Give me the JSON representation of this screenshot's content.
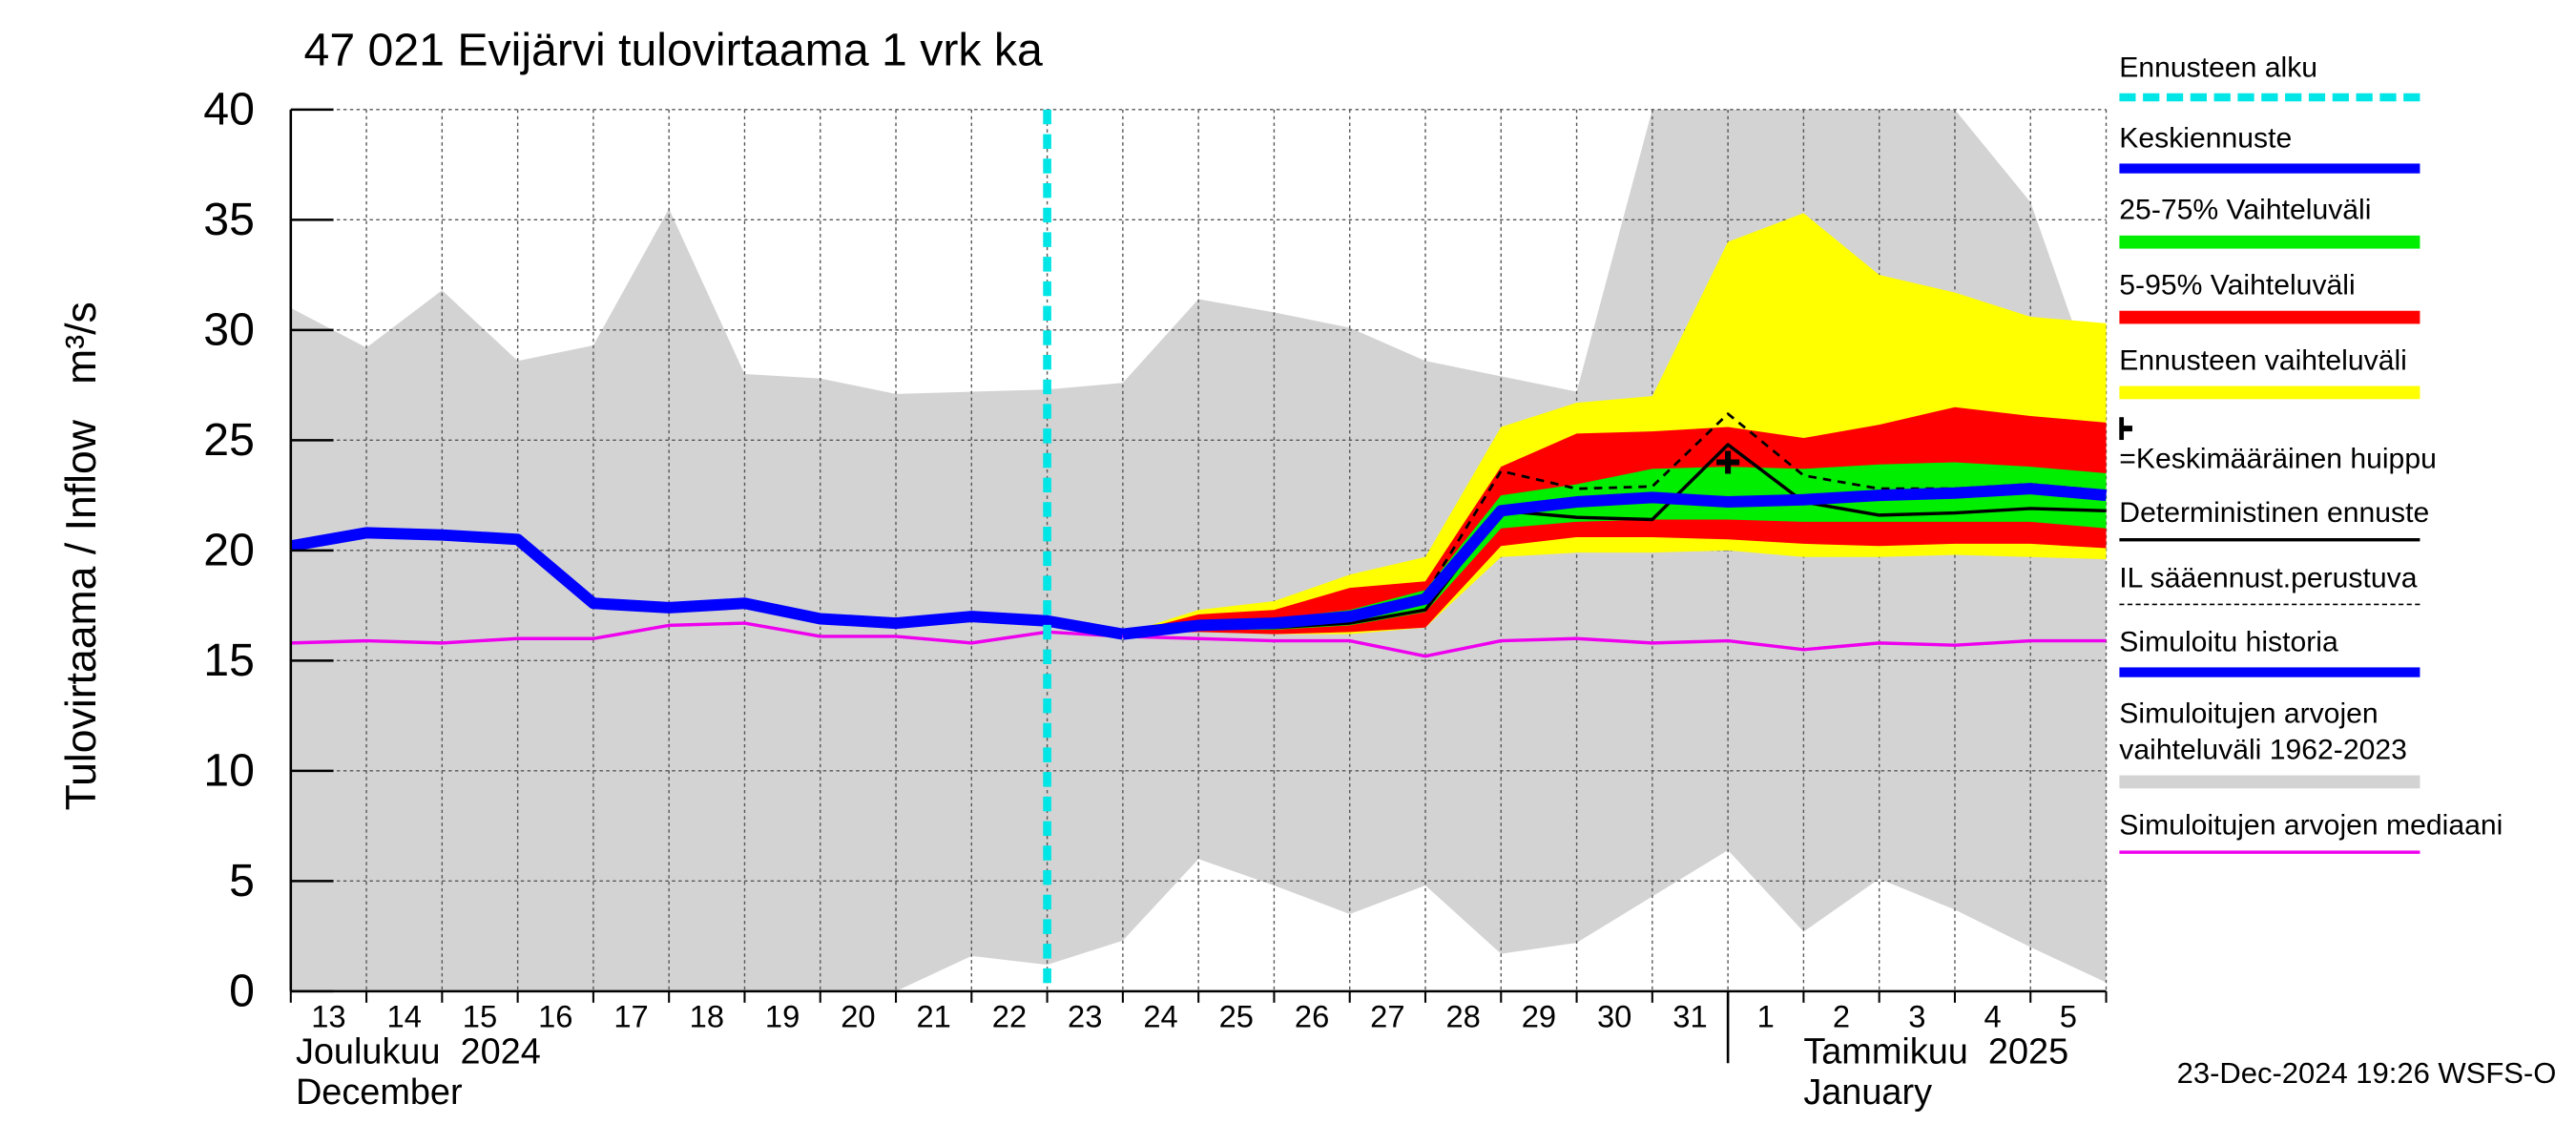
{
  "chart_data": {
    "type": "forecast-band",
    "title": "47 021 Evijärvi tulovirtaama 1 vrk ka",
    "y_label": "Tulovirtaama / Inflow   m³/s",
    "footer": "23-Dec-2024 19:26 WSFS-O",
    "month_labels": [
      [
        "Joulukuu  2024",
        "December"
      ],
      [
        "Tammikuu  2025",
        "January"
      ]
    ],
    "categories": [
      "13",
      "14",
      "15",
      "16",
      "17",
      "18",
      "19",
      "20",
      "21",
      "22",
      "23",
      "24",
      "25",
      "26",
      "27",
      "28",
      "29",
      "30",
      "31",
      "1",
      "2",
      "3",
      "4",
      "5",
      null
    ],
    "ylim": [
      0,
      40
    ],
    "yticks": [
      0,
      5,
      10,
      15,
      20,
      25,
      30,
      35,
      40
    ],
    "grid": true,
    "series": [
      {
        "name": "Ennusteen alku",
        "kind": "vline",
        "at": "23",
        "color": "#00e5e5",
        "style": "dashed"
      },
      {
        "name": "Keskiennuste",
        "kind": "line",
        "color": "#0000ff",
        "style": "thick",
        "values": [
          null,
          null,
          null,
          null,
          null,
          null,
          null,
          null,
          null,
          null,
          null,
          16.2,
          16.6,
          16.7,
          17,
          17.8,
          21.8,
          22.2,
          22.4,
          22.2,
          22.3,
          22.5,
          22.6,
          22.8,
          22.5
        ]
      },
      {
        "name": "25-75% Vaihteluväli",
        "kind": "band",
        "color": "#00ee00",
        "lower": [
          null,
          null,
          null,
          null,
          null,
          null,
          null,
          null,
          null,
          null,
          null,
          16.2,
          16.4,
          16.4,
          16.6,
          17.2,
          21,
          21.3,
          21.4,
          21.4,
          21.3,
          21.3,
          21.3,
          21.3,
          21
        ],
        "upper": [
          null,
          null,
          null,
          null,
          null,
          null,
          null,
          null,
          null,
          null,
          null,
          16.2,
          16.8,
          16.9,
          17.3,
          18.2,
          22.5,
          23,
          23.7,
          23.8,
          23.7,
          23.9,
          24,
          23.8,
          23.5
        ]
      },
      {
        "name": "5-95% Vaihteluväli",
        "kind": "band",
        "color": "#ff0000",
        "lower": [
          null,
          null,
          null,
          null,
          null,
          null,
          null,
          null,
          null,
          null,
          null,
          16.2,
          16.3,
          16.2,
          16.3,
          16.5,
          20.2,
          20.6,
          20.6,
          20.5,
          20.3,
          20.2,
          20.3,
          20.3,
          20.1
        ],
        "upper": [
          null,
          null,
          null,
          null,
          null,
          null,
          null,
          null,
          null,
          null,
          null,
          16.2,
          17.1,
          17.3,
          18.3,
          18.6,
          23.8,
          25.3,
          25.4,
          25.6,
          25.1,
          25.7,
          26.5,
          26.1,
          25.8
        ]
      },
      {
        "name": "Ennusteen vaihteluväli",
        "kind": "band",
        "color": "#ffff00",
        "lower": [
          null,
          null,
          null,
          null,
          null,
          null,
          null,
          null,
          null,
          null,
          null,
          16.2,
          16.4,
          16.2,
          16.2,
          16.5,
          19.7,
          19.9,
          19.9,
          20,
          19.7,
          19.7,
          19.8,
          19.7,
          19.6
        ],
        "upper": [
          null,
          null,
          null,
          null,
          null,
          null,
          null,
          null,
          null,
          null,
          null,
          16.2,
          17.3,
          17.7,
          18.9,
          19.7,
          25.6,
          26.7,
          27,
          34,
          35.3,
          32.5,
          31.7,
          30.6,
          30.3
        ]
      },
      {
        "name": "=Keskimääräinen huippu",
        "kind": "marker",
        "color": "#000000",
        "at": "1",
        "value": 24
      },
      {
        "name": "Deterministinen ennuste",
        "kind": "line",
        "color": "#000000",
        "style": "thin",
        "values": [
          null,
          null,
          null,
          null,
          null,
          null,
          null,
          null,
          null,
          null,
          null,
          16.2,
          16.5,
          16.5,
          16.7,
          17.3,
          21.8,
          21.5,
          21.4,
          24.8,
          22.2,
          21.6,
          21.7,
          21.9,
          21.8
        ]
      },
      {
        "name": "IL sääennust.perustuva",
        "kind": "line",
        "color": "#000000",
        "style": "dashed",
        "values": [
          null,
          null,
          null,
          null,
          null,
          null,
          null,
          null,
          null,
          null,
          null,
          16.2,
          16.6,
          16.6,
          17,
          18,
          23.6,
          22.8,
          22.9,
          26.2,
          23.4,
          22.8,
          22.8,
          23,
          22.7
        ]
      },
      {
        "name": "Simuloitu historia",
        "kind": "line",
        "color": "#0000ff",
        "style": "thick",
        "values": [
          20.2,
          20.8,
          20.7,
          20.5,
          17.6,
          17.4,
          17.6,
          16.9,
          16.7,
          17,
          16.8,
          16.2,
          null,
          null,
          null,
          null,
          null,
          null,
          null,
          null,
          null,
          null,
          null,
          null,
          null
        ]
      },
      {
        "name": "Simuloitujen arvojen vaihteluväli 1962-2023",
        "kind": "band",
        "color": "#d3d3d3",
        "lower": [
          0,
          0,
          0,
          0,
          0,
          0,
          0,
          0,
          0,
          1.6,
          1.2,
          2.3,
          6,
          4.8,
          3.5,
          4.8,
          1.7,
          2.2,
          4.3,
          6.4,
          2.7,
          5.1,
          3.7,
          2,
          0.4
        ],
        "upper": [
          31,
          29.2,
          31.8,
          28.6,
          29.3,
          35.5,
          28,
          27.8,
          27.1,
          27.2,
          27.3,
          27.6,
          31.4,
          30.8,
          30.1,
          28.6,
          27.9,
          27.2,
          40,
          40,
          40,
          40,
          40,
          35.8,
          26
        ]
      },
      {
        "name": "Simuloitujen arvojen mediaani",
        "kind": "line",
        "color": "#ee00ee",
        "style": "thin",
        "values": [
          15.8,
          15.9,
          15.8,
          16,
          16,
          16.6,
          16.7,
          16.1,
          16.1,
          15.8,
          16.3,
          16.1,
          16,
          15.9,
          15.9,
          15.2,
          15.9,
          16,
          15.8,
          15.9,
          15.5,
          15.8,
          15.7,
          15.9,
          15.9
        ]
      }
    ]
  }
}
